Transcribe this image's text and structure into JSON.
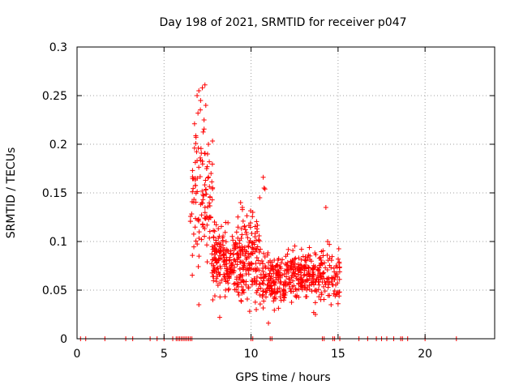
{
  "chart_data": {
    "type": "scatter",
    "title": "Day 198 of 2021, SRMTID for receiver p047",
    "xlabel": "GPS time / hours",
    "ylabel": "SRMTID / TECUs",
    "xlim": [
      0,
      24
    ],
    "ylim": [
      0,
      0.3
    ],
    "xticks": [
      0,
      5,
      10,
      15,
      20
    ],
    "xtick_labels": [
      "0",
      "5",
      "10",
      "15",
      "20"
    ],
    "yticks": [
      0,
      0.05,
      0.1,
      0.15,
      0.2,
      0.25,
      0.3
    ],
    "ytick_labels": [
      "0",
      "0.05",
      "0.1",
      "0.15",
      "0.2",
      "0.25",
      "0.3"
    ],
    "grid": true,
    "legend": "none",
    "marker": "+",
    "series": [
      {
        "name": "SRMTID",
        "color": "#ff0000",
        "generated_clusters": [
          {
            "x_range": [
              6.5,
              7.0
            ],
            "y_range": [
              0.04,
              0.25
            ],
            "count": 40
          },
          {
            "x_range": [
              7.0,
              7.8
            ],
            "y_range": [
              0.04,
              0.26
            ],
            "count": 70
          },
          {
            "x_range": [
              7.8,
              9.0
            ],
            "y_range": [
              0.03,
              0.13
            ],
            "count": 150
          },
          {
            "x_range": [
              9.0,
              10.5
            ],
            "y_range": [
              0.02,
              0.15
            ],
            "count": 180
          },
          {
            "x_range": [
              10.5,
              12.0
            ],
            "y_range": [
              0.02,
              0.1
            ],
            "count": 150
          },
          {
            "x_range": [
              12.0,
              13.5
            ],
            "y_range": [
              0.03,
              0.1
            ],
            "count": 150
          },
          {
            "x_range": [
              13.5,
              15.1
            ],
            "y_range": [
              0.03,
              0.1
            ],
            "count": 120
          }
        ],
        "points": [
          [
            7.35,
            0.261
          ],
          [
            7.2,
            0.258
          ],
          [
            7.0,
            0.255
          ],
          [
            6.9,
            0.25
          ],
          [
            7.1,
            0.245
          ],
          [
            7.4,
            0.24
          ],
          [
            6.95,
            0.232
          ],
          [
            7.3,
            0.225
          ],
          [
            6.75,
            0.196
          ],
          [
            7.5,
            0.19
          ],
          [
            6.9,
            0.183
          ],
          [
            7.6,
            0.182
          ],
          [
            7.55,
            0.2
          ],
          [
            7.45,
            0.175
          ],
          [
            6.8,
            0.165
          ],
          [
            7.7,
            0.17
          ],
          [
            10.7,
            0.166
          ],
          [
            10.75,
            0.155
          ],
          [
            10.8,
            0.154
          ],
          [
            14.3,
            0.135
          ],
          [
            10.5,
            0.145
          ],
          [
            9.4,
            0.14
          ],
          [
            9.5,
            0.135
          ],
          [
            10.1,
            0.13
          ],
          [
            7.9,
            0.12
          ],
          [
            14.4,
            0.1
          ],
          [
            14.5,
            0.097
          ],
          [
            8.1,
            0.055
          ],
          [
            11.0,
            0.016
          ],
          [
            10.3,
            0.03
          ],
          [
            8.2,
            0.022
          ],
          [
            14.6,
            0.035
          ],
          [
            15.0,
            0.036
          ],
          [
            7.0,
            0.035
          ],
          [
            7.8,
            0.04
          ],
          [
            10.5,
            0.045
          ],
          [
            9.3,
            0.045
          ],
          [
            13.6,
            0.027
          ],
          [
            13.7,
            0.025
          ],
          [
            12.9,
            0.092
          ]
        ]
      },
      {
        "name": "zero-markers",
        "color": "#ff0000",
        "x": [
          0.2,
          0.5,
          1.6,
          2.8,
          3.2,
          4.2,
          4.6,
          5.0,
          5.5,
          5.7,
          5.8,
          5.9,
          6.0,
          6.1,
          6.2,
          6.3,
          6.4,
          6.5,
          6.6,
          10.0,
          10.1,
          11.1,
          11.2,
          14.1,
          14.2,
          14.7,
          14.8,
          15.1,
          16.2,
          16.7,
          17.2,
          17.5,
          17.8,
          18.2,
          18.6,
          18.7,
          19.0,
          20.0,
          21.8
        ],
        "y": [
          0,
          0,
          0,
          0,
          0,
          0,
          0,
          0,
          0,
          0,
          0,
          0,
          0,
          0,
          0,
          0,
          0,
          0,
          0,
          0,
          0,
          0,
          0,
          0,
          0,
          0,
          0,
          0,
          0,
          0,
          0,
          0,
          0,
          0,
          0,
          0,
          0,
          0,
          0
        ]
      }
    ]
  }
}
